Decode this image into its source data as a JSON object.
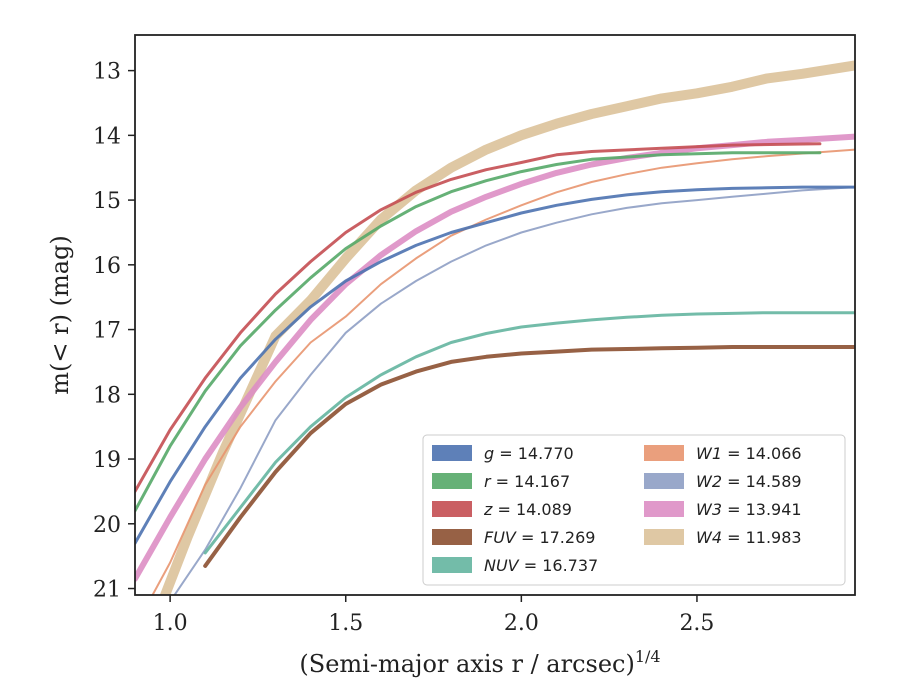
{
  "chart_data": {
    "type": "line",
    "title": "",
    "xlabel": "(Semi-major axis r / arcsec)",
    "xlabel_sup": "1/4",
    "ylabel": "m(< r) (mag)",
    "xlim": [
      0.9,
      2.95
    ],
    "ylim": [
      21.1,
      12.45
    ],
    "y_inverted": true,
    "x_ticks": [
      1.0,
      1.5,
      2.0,
      2.5
    ],
    "x_tick_labels": [
      "1.0",
      "1.5",
      "2.0",
      "2.5"
    ],
    "y_ticks": [
      13,
      14,
      15,
      16,
      17,
      18,
      19,
      20,
      21
    ],
    "y_tick_labels": [
      "13",
      "14",
      "15",
      "16",
      "17",
      "18",
      "19",
      "20",
      "21"
    ],
    "grid": false,
    "legend_position": "lower-right",
    "series": [
      {
        "name": "g",
        "label_value": "= 14.770",
        "color": "#4c72b0",
        "width": 3,
        "x": [
          0.9,
          1.0,
          1.1,
          1.2,
          1.3,
          1.4,
          1.5,
          1.6,
          1.7,
          1.8,
          1.9,
          2.0,
          2.1,
          2.2,
          2.3,
          2.4,
          2.5,
          2.6,
          2.7,
          2.8,
          2.95
        ],
        "y": [
          20.3,
          19.35,
          18.5,
          17.75,
          17.15,
          16.65,
          16.25,
          15.95,
          15.7,
          15.5,
          15.35,
          15.2,
          15.08,
          14.99,
          14.92,
          14.87,
          14.84,
          14.82,
          14.81,
          14.8,
          14.8
        ]
      },
      {
        "name": "r",
        "label_value": "= 14.167",
        "color": "#55a868",
        "width": 3,
        "x": [
          0.9,
          1.0,
          1.1,
          1.2,
          1.3,
          1.4,
          1.5,
          1.6,
          1.7,
          1.8,
          1.9,
          2.0,
          2.1,
          2.2,
          2.4,
          2.6,
          2.85
        ],
        "y": [
          19.8,
          18.8,
          17.95,
          17.25,
          16.7,
          16.2,
          15.75,
          15.4,
          15.1,
          14.87,
          14.7,
          14.56,
          14.45,
          14.37,
          14.3,
          14.27,
          14.27
        ]
      },
      {
        "name": "z",
        "label_value": "= 14.089",
        "color": "#c44e52",
        "width": 3,
        "x": [
          0.9,
          1.0,
          1.1,
          1.2,
          1.3,
          1.4,
          1.5,
          1.6,
          1.7,
          1.8,
          1.9,
          2.0,
          2.1,
          2.2,
          2.4,
          2.6,
          2.85
        ],
        "y": [
          19.5,
          18.55,
          17.75,
          17.05,
          16.45,
          15.95,
          15.5,
          15.15,
          14.88,
          14.68,
          14.53,
          14.42,
          14.3,
          14.25,
          14.2,
          14.15,
          14.13
        ]
      },
      {
        "name": "FUV",
        "label_value": "= 17.269",
        "color": "#8c5031",
        "width": 4,
        "x": [
          1.1,
          1.2,
          1.3,
          1.4,
          1.5,
          1.6,
          1.7,
          1.8,
          1.9,
          2.0,
          2.1,
          2.2,
          2.3,
          2.4,
          2.5,
          2.6,
          2.95
        ],
        "y": [
          20.65,
          19.9,
          19.2,
          18.6,
          18.15,
          17.85,
          17.65,
          17.5,
          17.42,
          17.37,
          17.34,
          17.31,
          17.3,
          17.29,
          17.28,
          17.27,
          17.27
        ]
      },
      {
        "name": "NUV",
        "label_value": "= 16.737",
        "color": "#64b5a0",
        "width": 3,
        "x": [
          1.1,
          1.2,
          1.3,
          1.4,
          1.5,
          1.6,
          1.7,
          1.8,
          1.9,
          2.0,
          2.1,
          2.2,
          2.3,
          2.4,
          2.5,
          2.6,
          2.7,
          2.95
        ],
        "y": [
          20.45,
          19.75,
          19.05,
          18.5,
          18.05,
          17.7,
          17.42,
          17.2,
          17.06,
          16.96,
          16.9,
          16.85,
          16.81,
          16.78,
          16.76,
          16.75,
          16.74,
          16.74
        ]
      },
      {
        "name": "W1",
        "label_value": "= 14.066",
        "color": "#e8956f",
        "width": 2,
        "x": [
          0.9,
          1.0,
          1.1,
          1.2,
          1.3,
          1.4,
          1.5,
          1.6,
          1.7,
          1.8,
          1.9,
          2.0,
          2.1,
          2.2,
          2.3,
          2.4,
          2.5,
          2.6,
          2.7,
          2.8,
          2.95
        ],
        "y": [
          21.6,
          20.6,
          19.4,
          18.5,
          17.8,
          17.2,
          16.8,
          16.3,
          15.9,
          15.55,
          15.3,
          15.08,
          14.88,
          14.72,
          14.6,
          14.5,
          14.43,
          14.37,
          14.32,
          14.28,
          14.22
        ]
      },
      {
        "name": "W2",
        "label_value": "= 14.589",
        "color": "#8e9fc4",
        "width": 2,
        "x": [
          0.95,
          1.1,
          1.2,
          1.3,
          1.4,
          1.5,
          1.6,
          1.7,
          1.8,
          1.9,
          2.0,
          2.1,
          2.2,
          2.3,
          2.4,
          2.5,
          2.6,
          2.7,
          2.8,
          2.95
        ],
        "y": [
          21.6,
          20.4,
          19.45,
          18.4,
          17.7,
          17.05,
          16.6,
          16.25,
          15.95,
          15.7,
          15.5,
          15.35,
          15.22,
          15.12,
          15.05,
          15.0,
          14.95,
          14.9,
          14.85,
          14.8
        ]
      },
      {
        "name": "W3",
        "label_value": "= 13.941",
        "color": "#dd8ec4",
        "width": 6,
        "x": [
          0.9,
          1.0,
          1.1,
          1.2,
          1.3,
          1.4,
          1.5,
          1.6,
          1.7,
          1.8,
          1.9,
          2.0,
          2.1,
          2.2,
          2.3,
          2.4,
          2.5,
          2.6,
          2.7,
          2.8,
          2.95
        ],
        "y": [
          20.85,
          19.9,
          19.0,
          18.2,
          17.5,
          16.85,
          16.3,
          15.85,
          15.48,
          15.18,
          14.95,
          14.75,
          14.58,
          14.45,
          14.35,
          14.27,
          14.2,
          14.15,
          14.1,
          14.07,
          14.02
        ]
      },
      {
        "name": "W4",
        "label_value": "= 11.983",
        "color": "#dcc29a",
        "width": 10,
        "x": [
          0.95,
          1.05,
          1.15,
          1.3,
          1.4,
          1.5,
          1.6,
          1.7,
          1.8,
          1.9,
          2.0,
          2.1,
          2.2,
          2.3,
          2.4,
          2.5,
          2.6,
          2.7,
          2.8,
          2.95
        ],
        "y": [
          21.6,
          20.2,
          18.9,
          17.1,
          16.55,
          15.9,
          15.3,
          14.85,
          14.5,
          14.22,
          14.0,
          13.82,
          13.67,
          13.55,
          13.43,
          13.35,
          13.25,
          13.12,
          13.05,
          12.92
        ]
      }
    ]
  }
}
